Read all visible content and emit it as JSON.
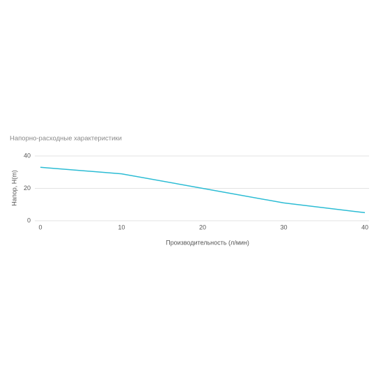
{
  "chart_data": {
    "type": "line",
    "title": "Напорно-расходные характеристики",
    "x_label": "Производительность (л/мин)",
    "y_label": "Напор, H(m)",
    "x": [
      0,
      10,
      20,
      30,
      40
    ],
    "series": [
      {
        "name": "Напор, H(m)",
        "color": "#2bbcd4",
        "values": [
          33,
          29,
          20,
          11,
          5
        ]
      }
    ],
    "xlim": [
      0,
      40
    ],
    "xticks": [
      0,
      10,
      20,
      30,
      40
    ],
    "ylim": [
      0,
      40
    ],
    "yticks": [
      0,
      20,
      40
    ],
    "grid": true
  }
}
